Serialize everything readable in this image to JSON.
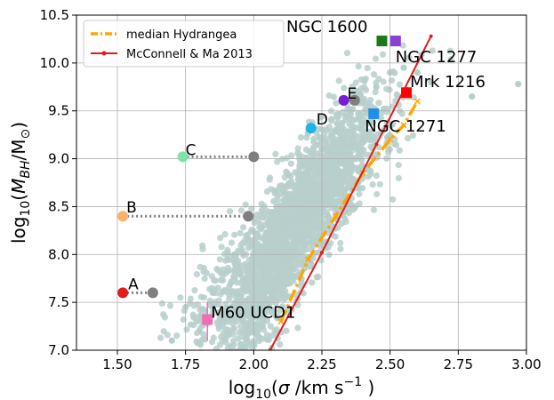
{
  "chart_data": {
    "type": "scatter",
    "title": "",
    "xlabel_parts": [
      "log",
      "10",
      "(",
      "σ",
      " /km s",
      "−1",
      " )"
    ],
    "ylabel_parts": [
      "log",
      "10",
      "(",
      "M",
      "BH",
      "/M",
      "⊙",
      ")"
    ],
    "xlim": [
      1.35,
      3.0
    ],
    "ylim": [
      7.0,
      10.5
    ],
    "xticks": [
      1.5,
      1.75,
      2.0,
      2.25,
      2.5,
      2.75,
      3.0
    ],
    "xtick_labels": [
      "1.50",
      "1.75",
      "2.00",
      "2.25",
      "2.50",
      "2.75",
      "3.00"
    ],
    "yticks": [
      7.0,
      7.5,
      8.0,
      8.5,
      9.0,
      9.5,
      10.0,
      10.5
    ],
    "ytick_labels": [
      "7.0",
      "7.5",
      "8.0",
      "8.5",
      "9.0",
      "9.5",
      "10.0",
      "10.5"
    ],
    "grid": true,
    "legend_position": "top-left",
    "legend": [
      {
        "label": "median Hydrangea",
        "color": "#ffa500",
        "style": "dashdot-x"
      },
      {
        "label": "McConnell & Ma 2013",
        "color": "#e41a1c",
        "style": "solid-dot"
      }
    ],
    "colors": {
      "cloud": "#b7cfcb",
      "grey_marker": "#7f7f7f",
      "dotted_link": "#808080"
    },
    "cloud": {
      "description_points": [
        [
          1.75,
          7.45
        ],
        [
          1.8,
          7.2
        ],
        [
          1.85,
          7.6
        ],
        [
          1.9,
          7.4
        ],
        [
          1.95,
          7.8
        ],
        [
          1.7,
          7.1
        ],
        [
          2.0,
          7.5
        ],
        [
          2.05,
          8.0
        ],
        [
          2.1,
          8.3
        ],
        [
          2.15,
          8.6
        ],
        [
          2.2,
          8.9
        ],
        [
          2.25,
          9.1
        ],
        [
          2.3,
          9.3
        ],
        [
          2.35,
          9.5
        ],
        [
          2.4,
          9.6
        ],
        [
          2.45,
          9.75
        ],
        [
          2.5,
          9.9
        ],
        [
          2.55,
          9.95
        ],
        [
          2.6,
          9.9
        ],
        [
          2.65,
          9.8
        ],
        [
          2.8,
          9.65
        ],
        [
          2.97,
          9.78
        ]
      ],
      "x_center_fit": [
        1.7,
        2.0,
        2.2,
        2.4,
        2.6
      ],
      "y_center_fit": [
        7.1,
        7.6,
        8.5,
        9.2,
        9.7
      ]
    },
    "series": [
      {
        "name": "median Hydrangea",
        "x": [
          2.1,
          2.2,
          2.3,
          2.4,
          2.5,
          2.55,
          2.6
        ],
        "y": [
          7.3,
          7.95,
          8.4,
          8.85,
          9.2,
          9.35,
          9.6
        ]
      },
      {
        "name": "McConnell & Ma 2013",
        "x": [
          2.06,
          2.25,
          2.45,
          2.65
        ],
        "y": [
          7.0,
          8.02,
          9.15,
          10.28
        ]
      }
    ],
    "objects": [
      {
        "label": "A",
        "x": 1.52,
        "y": 7.6,
        "color": "#e41a1c",
        "shape": "circle",
        "grey_x": 1.63,
        "grey_y": 7.6
      },
      {
        "label": "B",
        "x": 1.52,
        "y": 8.4,
        "color": "#f7b36b",
        "shape": "circle",
        "grey_x": 1.98,
        "grey_y": 8.4
      },
      {
        "label": "C",
        "x": 1.74,
        "y": 9.02,
        "color": "#7fe3a8",
        "shape": "circle",
        "grey_x": 2.0,
        "grey_y": 9.02
      },
      {
        "label": "D",
        "x": 2.21,
        "y": 9.32,
        "color": "#1eb4e8",
        "shape": "circle"
      },
      {
        "label": "E",
        "x": 2.33,
        "y": 9.61,
        "color": "#7a1bd6",
        "shape": "circle",
        "grey_x": 2.37,
        "grey_y": 9.61
      },
      {
        "label": "NGC 1600",
        "x": 2.47,
        "y": 10.23,
        "color": "#1a7a1a",
        "shape": "square"
      },
      {
        "label": "NGC 1277",
        "x": 2.52,
        "y": 10.23,
        "color": "#8a3fd6",
        "shape": "square"
      },
      {
        "label": "Mrk 1216",
        "x": 2.56,
        "y": 9.69,
        "color": "#ff0000",
        "shape": "square"
      },
      {
        "label": "NGC 1271",
        "x": 2.44,
        "y": 9.47,
        "color": "#1e90e8",
        "shape": "square"
      },
      {
        "label": "M60 UCD1",
        "x": 1.83,
        "y": 7.32,
        "color": "#f06fb3",
        "shape": "square",
        "errbar": [
          7.1,
          7.5
        ]
      }
    ]
  }
}
